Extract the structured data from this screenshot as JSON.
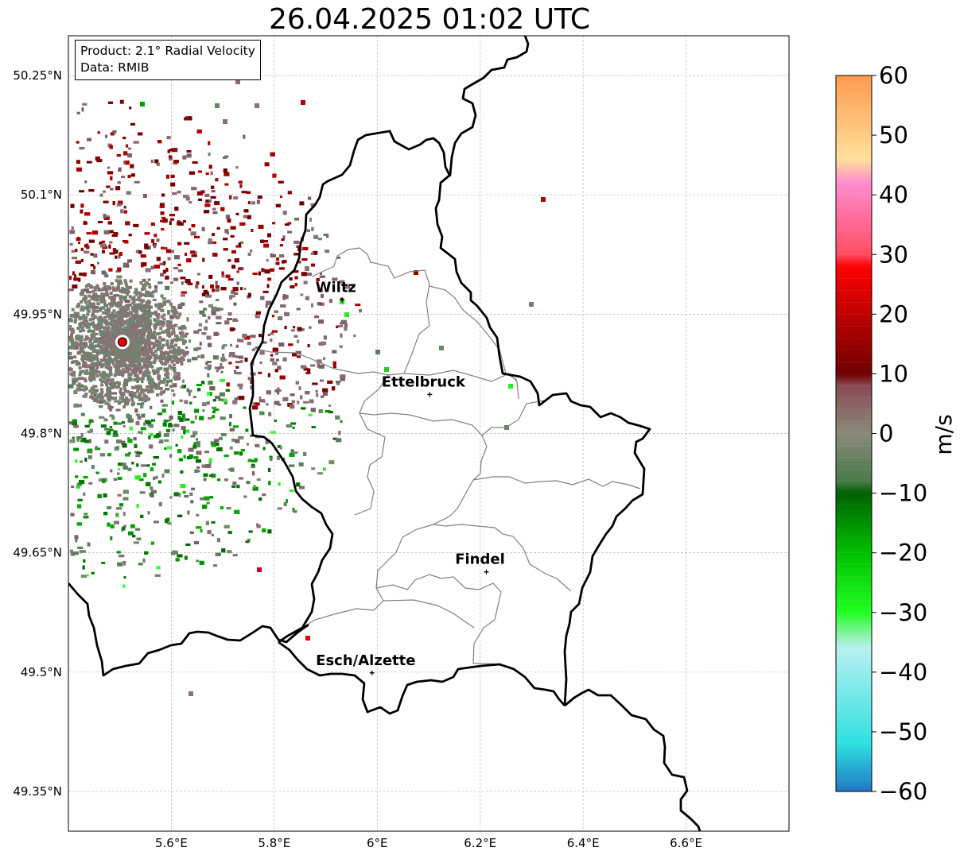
{
  "title": "26.04.2025 01:02 UTC",
  "info": {
    "product": "Product: 2.1° Radial Velocity",
    "data": "Data: RMIB"
  },
  "map": {
    "lon_range": [
      5.4,
      6.8
    ],
    "lat_range": [
      49.3,
      50.3
    ],
    "lon_ticks": [
      {
        "value": 5.6,
        "label": "5.6°E"
      },
      {
        "value": 5.8,
        "label": "5.8°E"
      },
      {
        "value": 6.0,
        "label": "6°E"
      },
      {
        "value": 6.2,
        "label": "6.2°E"
      },
      {
        "value": 6.4,
        "label": "6.4°E"
      },
      {
        "value": 6.6,
        "label": "6.6°E"
      }
    ],
    "lat_ticks": [
      {
        "value": 50.25,
        "label": "50.25°N"
      },
      {
        "value": 50.1,
        "label": "50.1°N"
      },
      {
        "value": 49.95,
        "label": "49.95°N"
      },
      {
        "value": 49.8,
        "label": "49.8°N"
      },
      {
        "value": 49.65,
        "label": "49.65°N"
      },
      {
        "value": 49.5,
        "label": "49.5°N"
      },
      {
        "value": 49.35,
        "label": "49.35°N"
      }
    ],
    "gridlines": true,
    "radar_site": {
      "lon": 5.505,
      "lat": 49.915,
      "color": "#e00000"
    },
    "cities": [
      {
        "name": "Wiltz",
        "lon": 5.932,
        "lat": 49.968
      },
      {
        "name": "Ettelbruck",
        "lon": 6.102,
        "lat": 49.849
      },
      {
        "name": "Findel",
        "lon": 6.212,
        "lat": 49.626
      },
      {
        "name": "Esch/Alzette",
        "lon": 5.99,
        "lat": 49.499
      }
    ]
  },
  "colorbar": {
    "label": "m/s",
    "min": -60,
    "max": 60,
    "ticks": [
      {
        "value": 60,
        "label": "60"
      },
      {
        "value": 50,
        "label": "50"
      },
      {
        "value": 40,
        "label": "40"
      },
      {
        "value": 30,
        "label": "30"
      },
      {
        "value": 20,
        "label": "20"
      },
      {
        "value": 10,
        "label": "10"
      },
      {
        "value": 0,
        "label": "0"
      },
      {
        "value": -10,
        "label": "−10"
      },
      {
        "value": -20,
        "label": "−20"
      },
      {
        "value": -30,
        "label": "−30"
      },
      {
        "value": -40,
        "label": "−40"
      },
      {
        "value": -50,
        "label": "−50"
      },
      {
        "value": -60,
        "label": "−60"
      }
    ],
    "stops": [
      {
        "value": -60,
        "color": "#1f78c4"
      },
      {
        "value": -52,
        "color": "#2ee0e0"
      },
      {
        "value": -36,
        "color": "#b8f0f0"
      },
      {
        "value": -34,
        "color": "#8ef2b0"
      },
      {
        "value": -30,
        "color": "#22ff22"
      },
      {
        "value": -20,
        "color": "#00c000"
      },
      {
        "value": -10,
        "color": "#006000"
      },
      {
        "value": -8,
        "color": "#4a7a4a"
      },
      {
        "value": 0,
        "color": "#8a8a7a"
      },
      {
        "value": 8,
        "color": "#8a4a52"
      },
      {
        "value": 10,
        "color": "#700000"
      },
      {
        "value": 28,
        "color": "#ff0000"
      },
      {
        "value": 30,
        "color": "#ff4d63"
      },
      {
        "value": 42,
        "color": "#ff8cd0"
      },
      {
        "value": 46,
        "color": "#ffe099"
      },
      {
        "value": 60,
        "color": "#ff9a50"
      }
    ]
  }
}
